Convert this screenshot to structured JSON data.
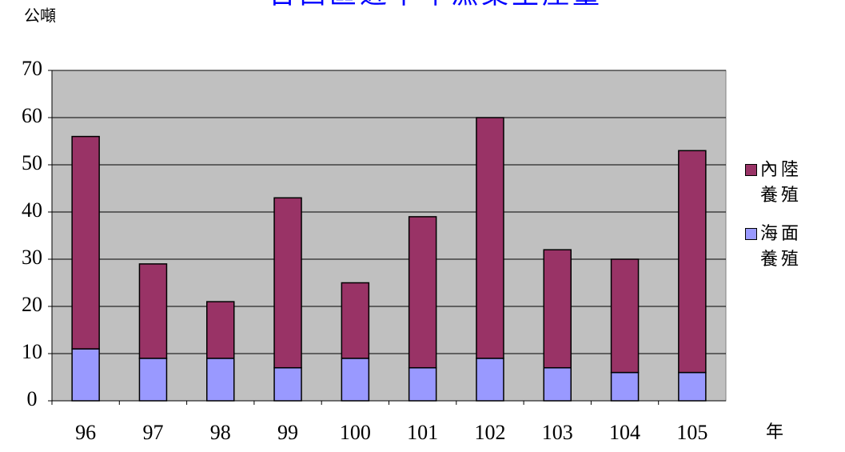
{
  "chart_data": {
    "type": "stacked_bar",
    "title": "台西區近十年漁業生產量",
    "y_label": "公噸",
    "x_label": "年",
    "categories": [
      "96",
      "97",
      "98",
      "99",
      "100",
      "101",
      "102",
      "103",
      "104",
      "105"
    ],
    "series": [
      {
        "name": "海面養殖",
        "color": "#9999ff",
        "values": [
          11,
          9,
          9,
          7,
          9,
          7,
          9,
          7,
          6,
          6
        ]
      },
      {
        "name": "內陸養殖",
        "color": "#993366",
        "values": [
          45,
          20,
          12,
          36,
          16,
          32,
          51,
          25,
          24,
          47
        ]
      }
    ],
    "ylim": [
      0,
      70
    ],
    "yticks": [
      0,
      10,
      20,
      30,
      40,
      50,
      60,
      70
    ],
    "grid": true,
    "legend": "right",
    "plot_background": "#c0c0c0"
  }
}
